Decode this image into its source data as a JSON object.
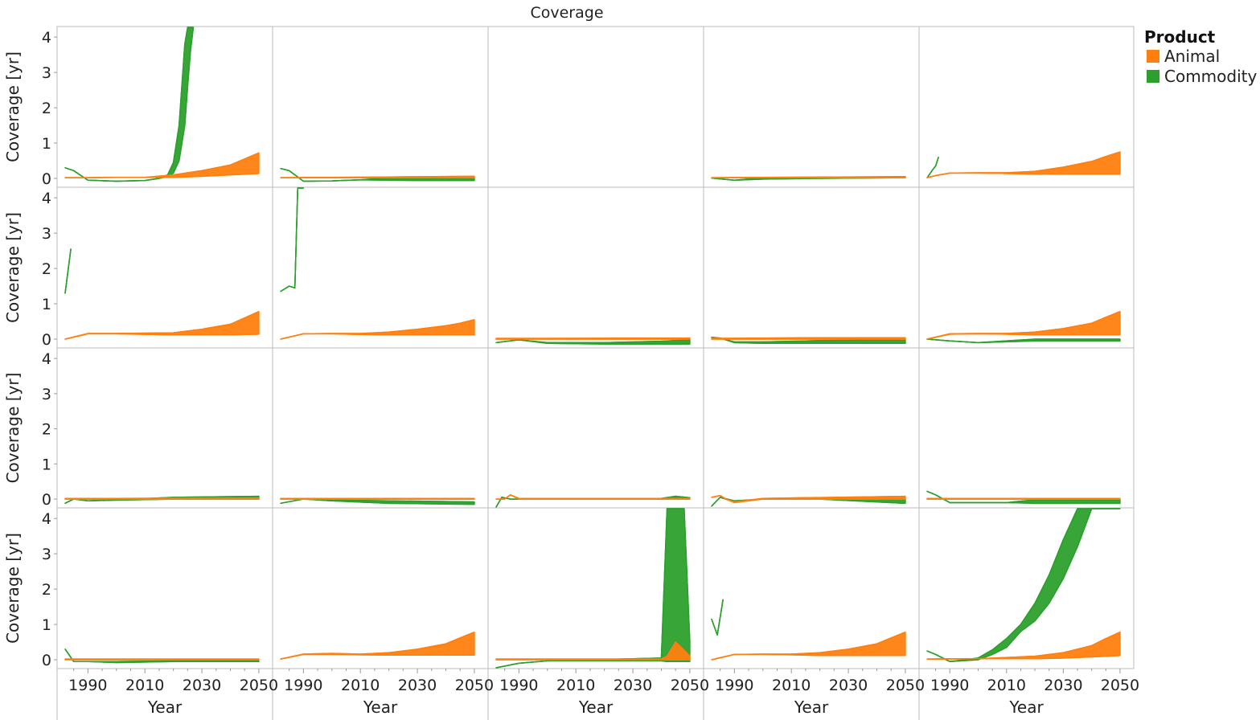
{
  "chart_data": {
    "type": "line",
    "title": "Coverage",
    "xlabel": "Year",
    "ylabel": "Coverage [yr]",
    "xlim": [
      1982,
      2052
    ],
    "ylim": [
      -0.25,
      4.3
    ],
    "x_ticks": [
      1990,
      2010,
      2030,
      2050
    ],
    "y_ticks": [
      0,
      1,
      2,
      3,
      4
    ],
    "grid": "panel borders only",
    "legend": {
      "title": "Product",
      "position": "top-right",
      "entries": [
        {
          "name": "Animal",
          "color": "#ff7f0e"
        },
        {
          "name": "Commodity",
          "color": "#2ca02c"
        }
      ]
    },
    "layout": {
      "rows": 4,
      "cols": 5
    },
    "panels": [
      {
        "row": 0,
        "col": 0,
        "animal": {
          "x": [
            1982,
            1990,
            2000,
            2010,
            2020,
            2030,
            2040,
            2045,
            2050
          ],
          "low": [
            0.02,
            0.02,
            0.03,
            0.03,
            0.03,
            0.06,
            0.1,
            0.12,
            0.14
          ],
          "high": [
            0.02,
            0.02,
            0.03,
            0.03,
            0.1,
            0.22,
            0.38,
            0.55,
            0.72
          ]
        },
        "commodity": {
          "x": [
            1982,
            1985,
            1990,
            2000,
            2010,
            2015,
            2018,
            2020,
            2022,
            2024,
            2025,
            2026,
            2027
          ],
          "low": [
            0.3,
            0.22,
            -0.05,
            -0.08,
            -0.06,
            0,
            0.05,
            0.15,
            0.5,
            1.5,
            2.6,
            3.6,
            4.3
          ],
          "high": [
            0.3,
            0.22,
            -0.05,
            -0.08,
            -0.06,
            0,
            0.1,
            0.45,
            1.5,
            3.8,
            4.3,
            4.3,
            4.3
          ]
        }
      },
      {
        "row": 0,
        "col": 1,
        "animal": {
          "x": [
            1982,
            2000,
            2020,
            2050
          ],
          "low": [
            0.02,
            0.02,
            0.02,
            0.02
          ],
          "high": [
            0.02,
            0.03,
            0.04,
            0.06
          ]
        },
        "commodity": {
          "x": [
            1982,
            1985,
            1990,
            2000,
            2010,
            2020,
            2030,
            2050
          ],
          "low": [
            0.28,
            0.22,
            -0.08,
            -0.07,
            -0.04,
            -0.05,
            -0.06,
            -0.06
          ],
          "high": [
            0.28,
            0.22,
            -0.08,
            -0.07,
            -0.04,
            0.02,
            0.02,
            0.02
          ]
        }
      },
      {
        "row": 0,
        "col": 2,
        "animal": null,
        "commodity": null
      },
      {
        "row": 0,
        "col": 3,
        "animal": {
          "x": [
            1982,
            2000,
            2050
          ],
          "low": [
            0.02,
            0.02,
            0.02
          ],
          "high": [
            0.02,
            0.03,
            0.05
          ]
        },
        "commodity": {
          "x": [
            1982,
            1990,
            2000,
            2020,
            2050
          ],
          "low": [
            0.01,
            -0.05,
            -0.02,
            0.0,
            0.02
          ],
          "high": [
            0.01,
            -0.05,
            0.02,
            0.03,
            0.05
          ]
        }
      },
      {
        "row": 0,
        "col": 4,
        "animal": {
          "x": [
            1982,
            1985,
            1990,
            2000,
            2010,
            2020,
            2030,
            2040,
            2045,
            2050
          ],
          "low": [
            0.02,
            0.08,
            0.15,
            0.15,
            0.14,
            0.12,
            0.12,
            0.12,
            0.12,
            0.12
          ],
          "high": [
            0.02,
            0.08,
            0.15,
            0.16,
            0.16,
            0.2,
            0.32,
            0.48,
            0.62,
            0.75
          ]
        },
        "commodity": {
          "x": [
            1982,
            1984,
            1985,
            1986
          ],
          "low": [
            0.02,
            0.25,
            0.35,
            0.6
          ],
          "high": [
            0.02,
            0.25,
            0.35,
            0.6
          ]
        }
      },
      {
        "row": 1,
        "col": 0,
        "animal": {
          "x": [
            1982,
            1990,
            2000,
            2020,
            2030,
            2040,
            2045,
            2050
          ],
          "low": [
            0.0,
            0.15,
            0.15,
            0.12,
            0.12,
            0.12,
            0.13,
            0.14
          ],
          "high": [
            0.0,
            0.16,
            0.16,
            0.18,
            0.28,
            0.42,
            0.6,
            0.78
          ]
        },
        "commodity": {
          "x": [
            1982,
            1984
          ],
          "low": [
            1.3,
            2.55
          ],
          "high": [
            1.3,
            2.55
          ]
        }
      },
      {
        "row": 1,
        "col": 1,
        "animal": {
          "x": [
            1982,
            1990,
            2000,
            2010,
            2020,
            2030,
            2040,
            2045,
            2050
          ],
          "low": [
            0.0,
            0.15,
            0.15,
            0.13,
            0.12,
            0.12,
            0.12,
            0.12,
            0.12
          ],
          "high": [
            0.0,
            0.15,
            0.16,
            0.16,
            0.2,
            0.28,
            0.38,
            0.45,
            0.55
          ]
        },
        "commodity": {
          "x": [
            1982,
            1985,
            1987,
            1988,
            1990
          ],
          "low": [
            1.35,
            1.5,
            1.45,
            4.3,
            4.3
          ],
          "high": [
            1.35,
            1.5,
            1.45,
            4.3,
            4.3
          ]
        }
      },
      {
        "row": 1,
        "col": 2,
        "animal": {
          "x": [
            1982,
            2000,
            2050
          ],
          "low": [
            0.0,
            0.0,
            0.0
          ],
          "high": [
            0.02,
            0.02,
            0.03
          ]
        },
        "commodity": {
          "x": [
            1982,
            1990,
            2000,
            2020,
            2040,
            2050
          ],
          "low": [
            -0.1,
            -0.02,
            -0.12,
            -0.14,
            -0.14,
            -0.14
          ],
          "high": [
            -0.1,
            -0.02,
            -0.1,
            -0.1,
            -0.06,
            -0.02
          ]
        }
      },
      {
        "row": 1,
        "col": 3,
        "animal": {
          "x": [
            1982,
            2000,
            2020,
            2050
          ],
          "low": [
            0.0,
            0.0,
            0.0,
            0.0
          ],
          "high": [
            0.02,
            0.03,
            0.04,
            0.04
          ]
        },
        "commodity": {
          "x": [
            1982,
            1985,
            1990,
            2000,
            2020,
            2050
          ],
          "low": [
            0.05,
            0.03,
            -0.1,
            -0.12,
            -0.12,
            -0.12
          ],
          "high": [
            0.05,
            0.03,
            -0.08,
            -0.08,
            -0.04,
            -0.02
          ]
        }
      },
      {
        "row": 1,
        "col": 4,
        "animal": {
          "x": [
            1982,
            1990,
            2000,
            2010,
            2020,
            2030,
            2040,
            2045,
            2050
          ],
          "low": [
            0.0,
            0.14,
            0.15,
            0.14,
            0.12,
            0.12,
            0.12,
            0.12,
            0.12
          ],
          "high": [
            0.0,
            0.15,
            0.16,
            0.16,
            0.2,
            0.3,
            0.45,
            0.62,
            0.78
          ]
        },
        "commodity": {
          "x": [
            1982,
            1990,
            2000,
            2020,
            2050
          ],
          "low": [
            0.0,
            -0.05,
            -0.1,
            -0.05,
            -0.05
          ],
          "high": [
            0.0,
            -0.05,
            -0.1,
            0.0,
            0.0
          ]
        }
      },
      {
        "row": 2,
        "col": 0,
        "animal": {
          "x": [
            1982,
            2000,
            2050
          ],
          "low": [
            0.0,
            0.0,
            0.0
          ],
          "high": [
            0.02,
            0.02,
            0.03
          ]
        },
        "commodity": {
          "x": [
            1982,
            1985,
            1990,
            2000,
            2020,
            2050
          ],
          "low": [
            -0.12,
            0.0,
            -0.05,
            -0.03,
            0.0,
            0.0
          ],
          "high": [
            -0.12,
            0.0,
            -0.05,
            -0.02,
            0.05,
            0.08
          ]
        }
      },
      {
        "row": 2,
        "col": 1,
        "animal": {
          "x": [
            1982,
            2000,
            2050
          ],
          "low": [
            0.0,
            0.0,
            0.0
          ],
          "high": [
            0.02,
            0.02,
            0.02
          ]
        },
        "commodity": {
          "x": [
            1982,
            1990,
            2000,
            2020,
            2050
          ],
          "low": [
            -0.12,
            0.0,
            -0.05,
            -0.12,
            -0.15
          ],
          "high": [
            -0.12,
            0.0,
            -0.03,
            -0.05,
            -0.08
          ]
        }
      },
      {
        "row": 2,
        "col": 2,
        "animal": {
          "x": [
            1982,
            1985,
            1987,
            1990,
            2000,
            2050
          ],
          "low": [
            0.0,
            0.0,
            0.12,
            0.0,
            0.0,
            0.0
          ],
          "high": [
            0.0,
            0.0,
            0.12,
            0.02,
            0.02,
            0.02
          ]
        },
        "commodity": {
          "x": [
            1982,
            1984,
            1987,
            1990,
            2000,
            2040,
            2045,
            2050
          ],
          "low": [
            -0.25,
            0.05,
            0.0,
            0.0,
            0.0,
            0.0,
            0.05,
            0.02
          ],
          "high": [
            -0.25,
            0.05,
            0.0,
            0.0,
            0.02,
            0.02,
            0.08,
            0.04
          ]
        }
      },
      {
        "row": 2,
        "col": 3,
        "animal": {
          "x": [
            1982,
            1985,
            1987,
            1990,
            2000,
            2050
          ],
          "low": [
            0.05,
            0.1,
            0.0,
            -0.1,
            0.0,
            0.0
          ],
          "high": [
            0.05,
            0.1,
            0.0,
            -0.08,
            0.02,
            0.08
          ]
        },
        "commodity": {
          "x": [
            1982,
            1985,
            1990,
            2000,
            2020,
            2050
          ],
          "low": [
            -0.2,
            0.05,
            -0.08,
            0.0,
            0.0,
            -0.12
          ],
          "high": [
            -0.2,
            0.05,
            -0.05,
            0.0,
            0.02,
            0.0
          ]
        }
      },
      {
        "row": 2,
        "col": 4,
        "animal": {
          "x": [
            1982,
            2000,
            2050
          ],
          "low": [
            0.0,
            0.0,
            0.0
          ],
          "high": [
            0.02,
            0.02,
            0.02
          ]
        },
        "commodity": {
          "x": [
            1982,
            1985,
            1990,
            2010,
            2020,
            2050
          ],
          "low": [
            0.22,
            0.12,
            -0.1,
            -0.1,
            -0.12,
            -0.12
          ],
          "high": [
            0.22,
            0.12,
            -0.1,
            -0.1,
            -0.02,
            -0.02
          ]
        }
      },
      {
        "row": 3,
        "col": 0,
        "animal": {
          "x": [
            1982,
            2000,
            2050
          ],
          "low": [
            0.0,
            0.0,
            0.0
          ],
          "high": [
            0.02,
            0.02,
            0.02
          ]
        },
        "commodity": {
          "x": [
            1982,
            1985,
            1990,
            2000,
            2020,
            2050
          ],
          "low": [
            0.3,
            -0.05,
            -0.05,
            -0.08,
            -0.05,
            -0.05
          ],
          "high": [
            0.3,
            -0.05,
            -0.05,
            -0.05,
            -0.03,
            -0.03
          ]
        }
      },
      {
        "row": 3,
        "col": 1,
        "animal": {
          "x": [
            1982,
            1990,
            2000,
            2010,
            2020,
            2030,
            2040,
            2045,
            2050
          ],
          "low": [
            0.02,
            0.15,
            0.15,
            0.14,
            0.13,
            0.13,
            0.13,
            0.13,
            0.13
          ],
          "high": [
            0.02,
            0.16,
            0.18,
            0.16,
            0.2,
            0.3,
            0.45,
            0.62,
            0.78
          ]
        },
        "commodity": null
      },
      {
        "row": 3,
        "col": 2,
        "animal": {
          "x": [
            1982,
            2000,
            2040,
            2042,
            2045,
            2047,
            2050
          ],
          "low": [
            0.0,
            0.0,
            0.0,
            0.0,
            0.0,
            0.0,
            0.0
          ],
          "high": [
            0.02,
            0.02,
            0.02,
            0.1,
            0.5,
            0.35,
            0.1
          ]
        },
        "commodity": {
          "x": [
            1982,
            1990,
            2000,
            2040,
            2042,
            2043,
            2046,
            2048,
            2050
          ],
          "low": [
            -0.25,
            -0.1,
            -0.03,
            -0.03,
            -0.05,
            -0.05,
            -0.05,
            -0.05,
            -0.05
          ],
          "high": [
            -0.25,
            -0.1,
            -0.03,
            0.05,
            4.3,
            4.3,
            4.3,
            4.3,
            0.5
          ]
        }
      },
      {
        "row": 3,
        "col": 3,
        "animal": {
          "x": [
            1982,
            1990,
            2000,
            2010,
            2020,
            2030,
            2040,
            2045,
            2050
          ],
          "low": [
            0.0,
            0.15,
            0.15,
            0.14,
            0.12,
            0.12,
            0.12,
            0.12,
            0.12
          ],
          "high": [
            0.0,
            0.15,
            0.16,
            0.16,
            0.2,
            0.3,
            0.45,
            0.62,
            0.78
          ]
        },
        "commodity": {
          "x": [
            1982,
            1984,
            1986
          ],
          "low": [
            1.15,
            0.7,
            1.7
          ],
          "high": [
            1.15,
            0.7,
            1.7
          ]
        }
      },
      {
        "row": 3,
        "col": 4,
        "animal": {
          "x": [
            1982,
            2000,
            2020,
            2030,
            2040,
            2045,
            2050
          ],
          "low": [
            0.02,
            0.03,
            0.03,
            0.05,
            0.08,
            0.1,
            0.12
          ],
          "high": [
            0.02,
            0.03,
            0.1,
            0.2,
            0.4,
            0.6,
            0.78
          ]
        },
        "commodity": {
          "x": [
            1982,
            1985,
            1990,
            2000,
            2005,
            2010,
            2015,
            2020,
            2025,
            2030,
            2035,
            2040,
            2045,
            2050
          ],
          "low": [
            0.25,
            0.15,
            -0.05,
            0.0,
            0.15,
            0.35,
            0.8,
            1.1,
            1.6,
            2.3,
            3.2,
            4.3,
            4.3,
            4.3
          ],
          "high": [
            0.25,
            0.15,
            -0.05,
            0.05,
            0.28,
            0.6,
            1.0,
            1.6,
            2.4,
            3.4,
            4.3,
            4.3,
            4.3,
            4.3
          ]
        }
      }
    ]
  }
}
